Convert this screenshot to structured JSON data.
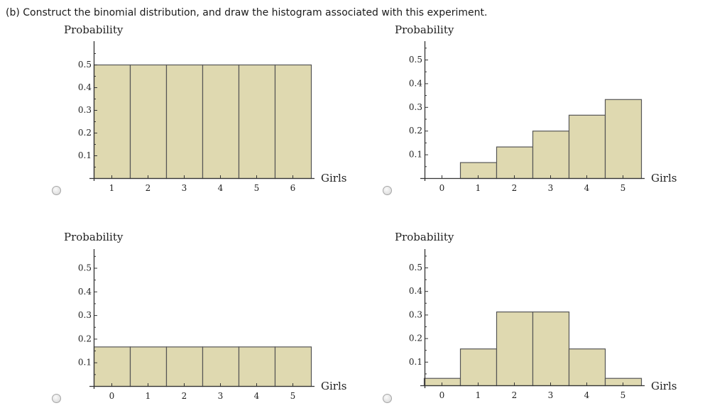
{
  "question": {
    "text": "(b) Construct the binomial distribution, and draw the histogram associated with this experiment."
  },
  "colors": {
    "bar_fill": "#dfd9b0",
    "bar_stroke": "#555555",
    "axis": "#333333",
    "text": "#222222"
  },
  "options": [
    {
      "id": "option-a",
      "ylabel": "Probability",
      "xlabel": "Girls",
      "ytick_labels": [
        "0.1",
        "0.2",
        "0.3",
        "0.4",
        "0.5"
      ],
      "xtick_labels": [
        "1",
        "2",
        "3",
        "4",
        "5",
        "6"
      ],
      "selected": false
    },
    {
      "id": "option-b",
      "ylabel": "Probability",
      "xlabel": "Girls",
      "ytick_labels": [
        "0.1",
        "0.2",
        "0.3",
        "0.4",
        "0.5"
      ],
      "xtick_labels": [
        "0",
        "1",
        "2",
        "3",
        "4",
        "5"
      ],
      "selected": false
    },
    {
      "id": "option-c",
      "ylabel": "Probability",
      "xlabel": "Girls",
      "ytick_labels": [
        "0.1",
        "0.2",
        "0.3",
        "0.4",
        "0.5"
      ],
      "xtick_labels": [
        "0",
        "1",
        "2",
        "3",
        "4",
        "5"
      ],
      "selected": false
    },
    {
      "id": "option-d",
      "ylabel": "Probability",
      "xlabel": "Girls",
      "ytick_labels": [
        "0.1",
        "0.2",
        "0.3",
        "0.4",
        "0.5"
      ],
      "xtick_labels": [
        "0",
        "1",
        "2",
        "3",
        "4",
        "5"
      ],
      "selected": false
    }
  ],
  "chart_data": [
    {
      "type": "bar",
      "title": "",
      "xlabel": "Girls",
      "ylabel": "Probability",
      "categories": [
        "1",
        "2",
        "3",
        "4",
        "5",
        "6"
      ],
      "values": [
        0.5,
        0.5,
        0.5,
        0.5,
        0.5,
        0.5
      ],
      "ylim": [
        0,
        0.58
      ],
      "grid": false,
      "legend": "none"
    },
    {
      "type": "bar",
      "title": "",
      "xlabel": "Girls",
      "ylabel": "Probability",
      "categories": [
        "0",
        "1",
        "2",
        "3",
        "4",
        "5"
      ],
      "values": [
        0,
        0.067,
        0.133,
        0.2,
        0.267,
        0.333
      ],
      "ylim": [
        0,
        0.58
      ],
      "grid": false,
      "legend": "none"
    },
    {
      "type": "bar",
      "title": "",
      "xlabel": "Girls",
      "ylabel": "Probability",
      "categories": [
        "0",
        "1",
        "2",
        "3",
        "4",
        "5"
      ],
      "values": [
        0.167,
        0.167,
        0.167,
        0.167,
        0.167,
        0.167
      ],
      "ylim": [
        0,
        0.58
      ],
      "grid": false,
      "legend": "none"
    },
    {
      "type": "bar",
      "title": "",
      "xlabel": "Girls",
      "ylabel": "Probability",
      "categories": [
        "0",
        "1",
        "2",
        "3",
        "4",
        "5"
      ],
      "values": [
        0.031,
        0.156,
        0.313,
        0.313,
        0.156,
        0.031
      ],
      "ylim": [
        0,
        0.58
      ],
      "grid": false,
      "legend": "none"
    }
  ]
}
